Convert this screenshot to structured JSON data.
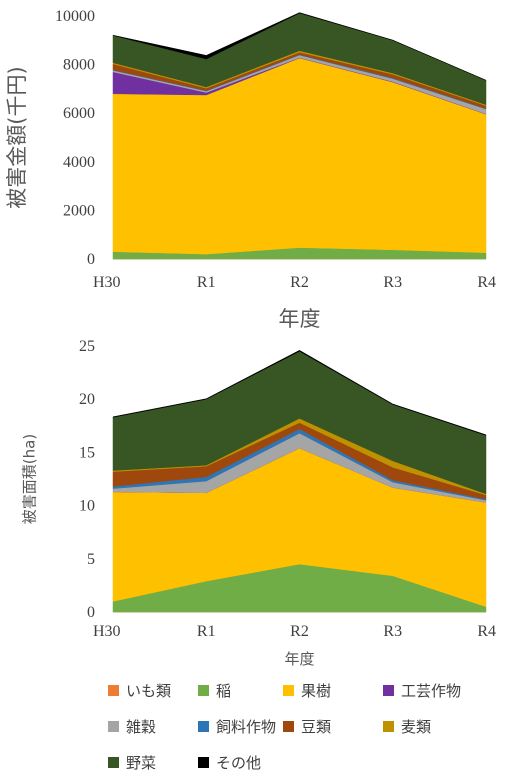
{
  "chart_data": [
    {
      "type": "area",
      "stacked": true,
      "categories": [
        "H30",
        "R1",
        "R2",
        "R3",
        "R4"
      ],
      "xlabel": "年度",
      "ylabel": "被害金額(千円)",
      "ylim": [
        0,
        10000
      ],
      "yticks": [
        "0",
        "2000",
        "4000",
        "6000",
        "8000",
        "10000"
      ],
      "grid": false,
      "series": [
        {
          "name": "いも類",
          "color": "#ED7D31",
          "values": [
            0,
            0,
            0,
            0,
            0
          ]
        },
        {
          "name": "稲",
          "color": "#70AD47",
          "values": [
            300,
            200,
            470,
            380,
            260
          ]
        },
        {
          "name": "果樹",
          "color": "#FFC000",
          "values": [
            6500,
            6550,
            7800,
            6900,
            5700
          ]
        },
        {
          "name": "工芸作物",
          "color": "#7030A0",
          "values": [
            900,
            100,
            20,
            20,
            10
          ]
        },
        {
          "name": "雑穀",
          "color": "#A5A5A5",
          "values": [
            60,
            60,
            100,
            120,
            200
          ]
        },
        {
          "name": "飼料作物",
          "color": "#2E75B6",
          "values": [
            20,
            20,
            20,
            30,
            20
          ]
        },
        {
          "name": "豆類",
          "color": "#9E480E",
          "values": [
            250,
            100,
            100,
            150,
            120
          ]
        },
        {
          "name": "麦類",
          "color": "#BF9000",
          "values": [
            50,
            50,
            60,
            50,
            40
          ]
        },
        {
          "name": "野菜",
          "color": "#375623",
          "values": [
            1120,
            1150,
            1550,
            1350,
            1000
          ]
        },
        {
          "name": "その他",
          "color": "#000000",
          "values": [
            10,
            150,
            20,
            10,
            10
          ]
        }
      ]
    },
    {
      "type": "area",
      "stacked": true,
      "categories": [
        "H30",
        "R1",
        "R2",
        "R3",
        "R4"
      ],
      "xlabel": "年度",
      "ylabel": "被害面積(ha)",
      "ylim": [
        0,
        25
      ],
      "yticks": [
        "0",
        "5",
        "10",
        "15",
        "20",
        "25"
      ],
      "grid": false,
      "series": [
        {
          "name": "いも類",
          "color": "#ED7D31",
          "values": [
            0,
            0,
            0,
            0,
            0
          ]
        },
        {
          "name": "稲",
          "color": "#70AD47",
          "values": [
            1.0,
            2.9,
            4.5,
            3.4,
            0.5
          ]
        },
        {
          "name": "果樹",
          "color": "#FFC000",
          "values": [
            10.3,
            8.3,
            10.9,
            8.3,
            9.8
          ]
        },
        {
          "name": "工芸作物",
          "color": "#7030A0",
          "values": [
            0,
            0,
            0,
            0,
            0
          ]
        },
        {
          "name": "雑穀",
          "color": "#A5A5A5",
          "values": [
            0.3,
            1.1,
            1.4,
            0.5,
            0.2
          ]
        },
        {
          "name": "飼料作物",
          "color": "#2E75B6",
          "values": [
            0.2,
            0.4,
            0.4,
            0.2,
            0.1
          ]
        },
        {
          "name": "豆類",
          "color": "#9E480E",
          "values": [
            1.4,
            1.0,
            0.6,
            1.2,
            0.4
          ]
        },
        {
          "name": "麦類",
          "color": "#BF9000",
          "values": [
            0.1,
            0.1,
            0.4,
            0.6,
            0.1
          ]
        },
        {
          "name": "野菜",
          "color": "#375623",
          "values": [
            5.0,
            6.2,
            6.3,
            5.3,
            5.5
          ]
        },
        {
          "name": "その他",
          "color": "#000000",
          "values": [
            0.05,
            0.05,
            0.1,
            0.05,
            0.05
          ]
        }
      ]
    }
  ],
  "legend": [
    {
      "label": "いも類",
      "color": "#ED7D31"
    },
    {
      "label": "稲",
      "color": "#70AD47"
    },
    {
      "label": "果樹",
      "color": "#FFC000"
    },
    {
      "label": "工芸作物",
      "color": "#7030A0"
    },
    {
      "label": "雑穀",
      "color": "#A5A5A5"
    },
    {
      "label": "飼料作物",
      "color": "#2E75B6"
    },
    {
      "label": "豆類",
      "color": "#9E480E"
    },
    {
      "label": "麦類",
      "color": "#BF9000"
    },
    {
      "label": "野菜",
      "color": "#375623"
    },
    {
      "label": "その他",
      "color": "#000000"
    }
  ]
}
